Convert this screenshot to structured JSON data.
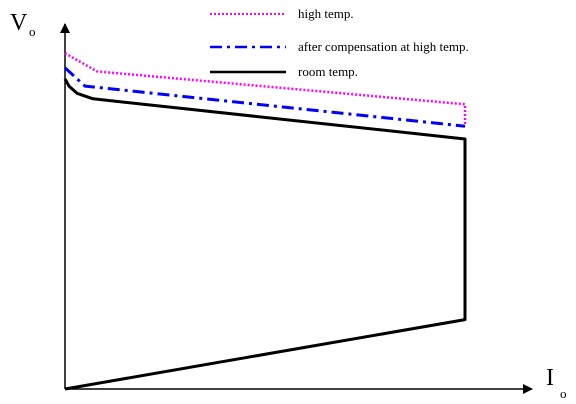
{
  "chart_data": {
    "type": "line",
    "title": "",
    "xlabel": "I",
    "xlabel_subscript": "o",
    "ylabel": "V",
    "ylabel_subscript": "o",
    "xlim": [
      0,
      100
    ],
    "ylim": [
      0,
      100
    ],
    "grid": false,
    "legend_position": "top-right",
    "ticks_shown": false,
    "series": [
      {
        "name": "high temp.",
        "color": "#ff00ff",
        "dash": "dotted",
        "x": [
          0,
          8,
          100,
          100
        ],
        "y": [
          92,
          87,
          78,
          72
        ]
      },
      {
        "name": "after compensation at high temp.",
        "color": "#0000ff",
        "dash": "dash-dot",
        "x": [
          0,
          5,
          100,
          100
        ],
        "y": [
          88,
          83,
          72,
          72
        ]
      },
      {
        "name": "room temp.",
        "color": "#000000",
        "dash": "solid",
        "x": [
          0,
          1,
          3,
          7,
          100,
          100,
          0
        ],
        "y": [
          85,
          83,
          81,
          79.5,
          68.5,
          19,
          0
        ]
      }
    ]
  }
}
